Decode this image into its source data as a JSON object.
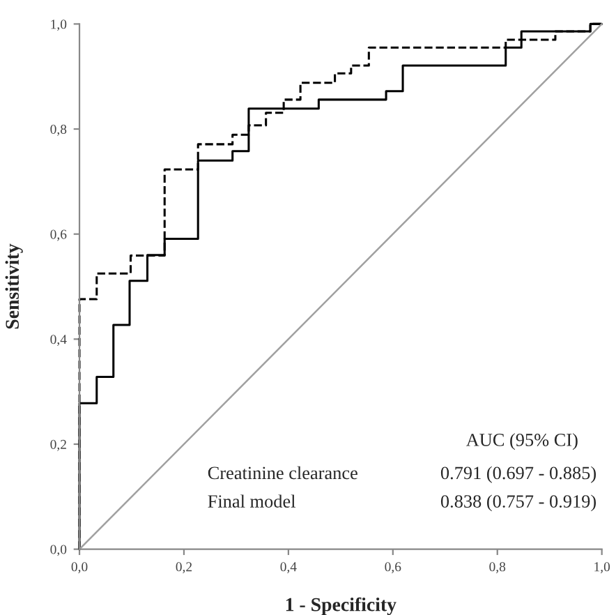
{
  "chart_data": {
    "type": "step",
    "xlabel": "1 - Specificity",
    "ylabel": "Sensitivity",
    "xlim": [
      0,
      1
    ],
    "ylim": [
      0,
      1
    ],
    "xticks": [
      {
        "value": 0,
        "label": "0,0"
      },
      {
        "value": 0.2,
        "label": "0,2"
      },
      {
        "value": 0.4,
        "label": "0,4"
      },
      {
        "value": 0.6,
        "label": "0,6"
      },
      {
        "value": 0.8,
        "label": "0,8"
      },
      {
        "value": 1,
        "label": "1,0"
      }
    ],
    "yticks": [
      {
        "value": 0,
        "label": "0,0"
      },
      {
        "value": 0.2,
        "label": "0,2"
      },
      {
        "value": 0.4,
        "label": "0,4"
      },
      {
        "value": 0.6,
        "label": "0,6"
      },
      {
        "value": 0.8,
        "label": "0,8"
      },
      {
        "value": 1,
        "label": "1,0"
      }
    ],
    "grid": false,
    "legend": false,
    "marker": "none",
    "series": [
      {
        "color": "#000000",
        "line_style": "solid",
        "x": [
          0,
          0,
          0.033,
          0.065,
          0.096,
          0.13,
          0.163,
          0.227,
          0.293,
          0.324,
          0.458,
          0.587,
          0.619,
          0.816,
          0.846,
          0.978,
          1.0
        ],
        "values": [
          0,
          0.278,
          0.328,
          0.427,
          0.511,
          0.56,
          0.591,
          0.74,
          0.758,
          0.839,
          0.856,
          0.872,
          0.921,
          0.955,
          0.986,
          1.0,
          1.0
        ]
      },
      {
        "color": "#000000",
        "line_style": "dashed",
        "x": [
          0,
          0,
          0.033,
          0.098,
          0.163,
          0.227,
          0.293,
          0.324,
          0.357,
          0.391,
          0.423,
          0.489,
          0.52,
          0.554,
          0.816,
          0.911,
          0.978,
          1.0
        ],
        "values": [
          0,
          0.476,
          0.525,
          0.559,
          0.723,
          0.771,
          0.789,
          0.807,
          0.831,
          0.856,
          0.888,
          0.906,
          0.921,
          0.955,
          0.97,
          0.986,
          1.0,
          1.0
        ]
      },
      {
        "type": "line",
        "color": "#a0a0a0",
        "line_style": "solid",
        "x": [
          0,
          1
        ],
        "values": [
          0,
          1
        ]
      }
    ],
    "annotations": [
      "AUC (95% CI)",
      "Creatinine clearance",
      "0.791 (0.697 - 0.885)",
      "Final model",
      "0.838 (0.757 - 0.919)"
    ]
  }
}
